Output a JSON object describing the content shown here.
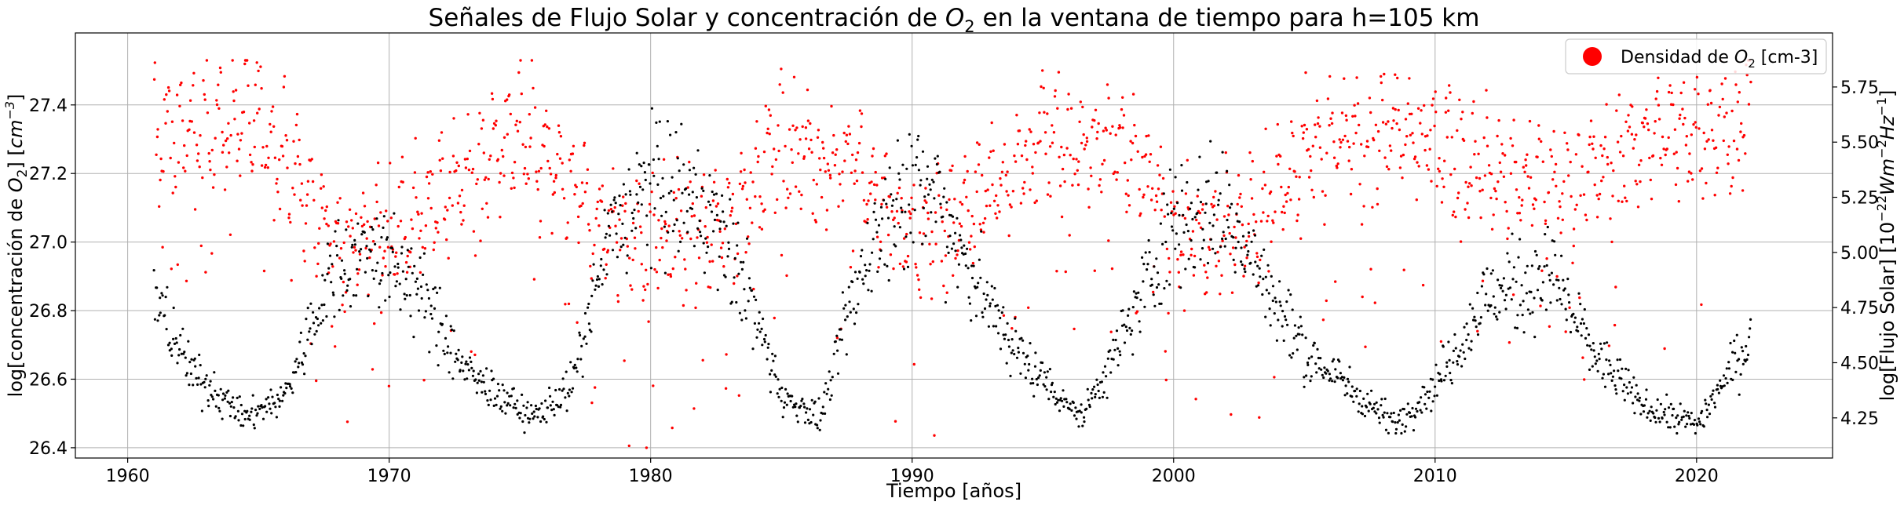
{
  "chart_data": {
    "type": "scatter",
    "title_prefix": "Señales de Flujo Solar y concentración de ",
    "title_species": "O",
    "title_sub": "2",
    "title_suffix": " en la ventana de tiempo para h=105 km",
    "xlabel": "Tiempo [años]",
    "ylabel_left_prefix": "log[concentración de ",
    "ylabel_left_species": "O",
    "ylabel_left_sub": "2",
    "ylabel_left_mid": "] [",
    "ylabel_left_unit": "cm",
    "ylabel_left_exp": "−3",
    "ylabel_left_end": "]",
    "ylabel_right_prefix": "log[Flujo Solar] [",
    "ylabel_right_ten": "10",
    "ylabel_right_exp1": "−22",
    "ylabel_right_w": "Wm",
    "ylabel_right_exp2": "−2",
    "ylabel_right_hz": "Hz",
    "ylabel_right_exp3": "−1",
    "ylabel_right_end": "]",
    "xlim": [
      1958,
      2025.2
    ],
    "ylim_left": [
      26.37,
      27.61
    ],
    "ylim_right": [
      4.068,
      5.995
    ],
    "x_ticks": [
      1960,
      1970,
      1980,
      1990,
      2000,
      2010,
      2020
    ],
    "x_tick_labels": [
      "1960",
      "1970",
      "1980",
      "1990",
      "2000",
      "2010",
      "2020"
    ],
    "y_left_ticks": [
      26.4,
      26.6,
      26.8,
      27.0,
      27.2,
      27.4
    ],
    "y_left_tick_labels": [
      "26.4",
      "26.6",
      "26.8",
      "27.0",
      "27.2",
      "27.4"
    ],
    "y_right_ticks": [
      4.25,
      4.5,
      4.75,
      5.0,
      5.25,
      5.5,
      5.75
    ],
    "y_right_tick_labels": [
      "4.25",
      "4.50",
      "4.75",
      "5.00",
      "5.25",
      "5.50",
      "5.75"
    ],
    "grid": true,
    "legend": {
      "placement": "top-right",
      "label_prefix": "Densidad de ",
      "label_species": "O",
      "label_sub": "2",
      "label_suffix": " [cm-3]",
      "color": "#ff0000"
    },
    "series": [
      {
        "name": "Densidad de O2 [cm-3]",
        "axis": "left",
        "color": "#ff0000",
        "x_range": [
          1961.0,
          2022.1
        ],
        "description": "O2 concentration, annual oscillation",
        "mean_vs_year": [
          [
            1961,
            27.3
          ],
          [
            1965,
            27.36
          ],
          [
            1968,
            27.0
          ],
          [
            1970,
            27.02
          ],
          [
            1975,
            27.32
          ],
          [
            1978,
            27.05
          ],
          [
            1980,
            27.0
          ],
          [
            1983,
            27.05
          ],
          [
            1985,
            27.3
          ],
          [
            1988,
            27.2
          ],
          [
            1990,
            27.0
          ],
          [
            1992,
            27.1
          ],
          [
            1995,
            27.3
          ],
          [
            1998,
            27.3
          ],
          [
            2000,
            27.05
          ],
          [
            2003,
            27.05
          ],
          [
            2005,
            27.25
          ],
          [
            2008,
            27.32
          ],
          [
            2010,
            27.3
          ],
          [
            2012,
            27.2
          ],
          [
            2015,
            27.15
          ],
          [
            2018,
            27.3
          ],
          [
            2022,
            27.35
          ]
        ]
      },
      {
        "name": "Flujo Solar",
        "axis": "right",
        "color": "#000000",
        "x_range": [
          1961.0,
          2022.1
        ],
        "description": "Solar flux, 11-year solar cycle",
        "mean_vs_year": [
          [
            1961,
            4.8
          ],
          [
            1962.5,
            4.45
          ],
          [
            1964.5,
            4.25
          ],
          [
            1966,
            4.35
          ],
          [
            1968,
            4.95
          ],
          [
            1969.5,
            5.0
          ],
          [
            1971,
            4.85
          ],
          [
            1973,
            4.45
          ],
          [
            1975.5,
            4.25
          ],
          [
            1977,
            4.4
          ],
          [
            1978.5,
            5.1
          ],
          [
            1980,
            5.3
          ],
          [
            1982,
            5.2
          ],
          [
            1983.5,
            4.9
          ],
          [
            1985,
            4.35
          ],
          [
            1986.5,
            4.25
          ],
          [
            1988,
            4.9
          ],
          [
            1989.5,
            5.3
          ],
          [
            1991,
            5.25
          ],
          [
            1992.5,
            4.85
          ],
          [
            1994,
            4.55
          ],
          [
            1996.5,
            4.25
          ],
          [
            1998,
            4.6
          ],
          [
            2000,
            5.15
          ],
          [
            2002,
            5.2
          ],
          [
            2003.5,
            4.85
          ],
          [
            2005,
            4.55
          ],
          [
            2008.5,
            4.22
          ],
          [
            2010,
            4.4
          ],
          [
            2012,
            4.8
          ],
          [
            2014.5,
            4.9
          ],
          [
            2016,
            4.55
          ],
          [
            2018,
            4.3
          ],
          [
            2020,
            4.22
          ],
          [
            2022,
            4.6
          ]
        ]
      }
    ]
  }
}
